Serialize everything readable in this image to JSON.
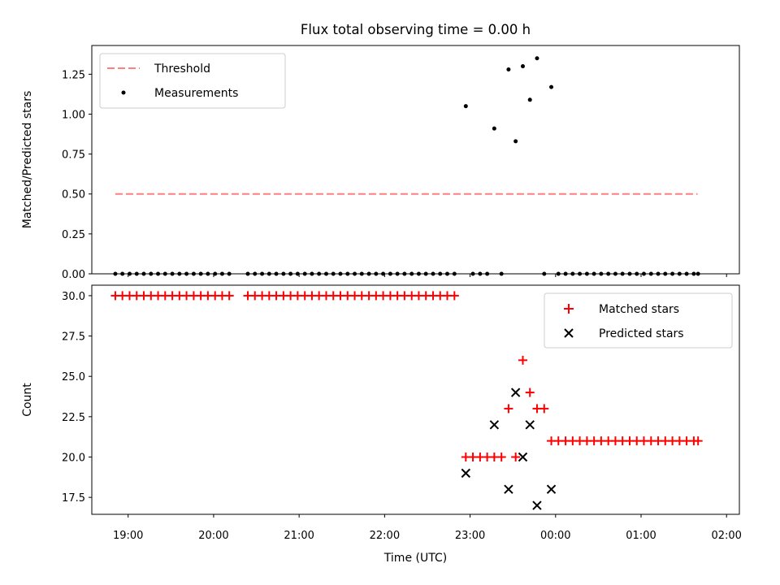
{
  "chart_data": [
    {
      "type": "scatter",
      "panel": "top",
      "title": "Flux total observing time = 0.00 h",
      "xlabel": "",
      "ylabel": "Matched/Predicted stars",
      "xlim": [
        18.575,
        26.15
      ],
      "ylim": [
        0.0,
        1.43
      ],
      "yticks": [
        0.0,
        0.25,
        0.5,
        0.75,
        1.0,
        1.25
      ],
      "ytick_labels": [
        "0.00",
        "0.25",
        "0.50",
        "0.75",
        "1.00",
        "1.25"
      ],
      "grid": false,
      "legend_position": "upper left",
      "threshold": {
        "name": "Threshold",
        "value": 0.5,
        "x_range": [
          18.85,
          25.66
        ],
        "color": "#ff7f7f"
      },
      "series": [
        {
          "name": "Measurements",
          "color": "#000000",
          "points": [
            [
              18.85,
              0
            ],
            [
              18.933,
              0
            ],
            [
              19.017,
              0
            ],
            [
              19.1,
              0
            ],
            [
              19.183,
              0
            ],
            [
              19.267,
              0
            ],
            [
              19.35,
              0
            ],
            [
              19.433,
              0
            ],
            [
              19.517,
              0
            ],
            [
              19.6,
              0
            ],
            [
              19.683,
              0
            ],
            [
              19.767,
              0
            ],
            [
              19.85,
              0
            ],
            [
              19.933,
              0
            ],
            [
              20.017,
              0
            ],
            [
              20.1,
              0
            ],
            [
              20.183,
              0
            ],
            [
              20.4,
              0
            ],
            [
              20.483,
              0
            ],
            [
              20.567,
              0
            ],
            [
              20.65,
              0
            ],
            [
              20.733,
              0
            ],
            [
              20.817,
              0
            ],
            [
              20.9,
              0
            ],
            [
              20.983,
              0
            ],
            [
              21.067,
              0
            ],
            [
              21.15,
              0
            ],
            [
              21.233,
              0
            ],
            [
              21.317,
              0
            ],
            [
              21.4,
              0
            ],
            [
              21.483,
              0
            ],
            [
              21.567,
              0
            ],
            [
              21.65,
              0
            ],
            [
              21.733,
              0
            ],
            [
              21.817,
              0
            ],
            [
              21.9,
              0
            ],
            [
              21.983,
              0
            ],
            [
              22.067,
              0
            ],
            [
              22.15,
              0
            ],
            [
              22.233,
              0
            ],
            [
              22.317,
              0
            ],
            [
              22.4,
              0
            ],
            [
              22.483,
              0
            ],
            [
              22.567,
              0
            ],
            [
              22.65,
              0
            ],
            [
              22.733,
              0
            ],
            [
              22.817,
              0
            ],
            [
              22.95,
              1.05
            ],
            [
              23.033,
              0
            ],
            [
              23.117,
              0
            ],
            [
              23.2,
              0
            ],
            [
              23.283,
              0.91
            ],
            [
              23.367,
              0
            ],
            [
              23.45,
              1.28
            ],
            [
              23.533,
              0.83
            ],
            [
              23.617,
              1.3
            ],
            [
              23.7,
              1.09
            ],
            [
              23.783,
              1.35
            ],
            [
              23.867,
              0
            ],
            [
              23.95,
              1.17
            ],
            [
              24.033,
              0
            ],
            [
              24.117,
              0
            ],
            [
              24.2,
              0
            ],
            [
              24.283,
              0
            ],
            [
              24.367,
              0
            ],
            [
              24.45,
              0
            ],
            [
              24.533,
              0
            ],
            [
              24.617,
              0
            ],
            [
              24.7,
              0
            ],
            [
              24.783,
              0
            ],
            [
              24.867,
              0
            ],
            [
              24.95,
              0
            ],
            [
              25.033,
              0
            ],
            [
              25.117,
              0
            ],
            [
              25.2,
              0
            ],
            [
              25.283,
              0
            ],
            [
              25.367,
              0
            ],
            [
              25.45,
              0
            ],
            [
              25.533,
              0
            ],
            [
              25.617,
              0
            ],
            [
              25.667,
              0
            ]
          ]
        }
      ]
    },
    {
      "type": "scatter",
      "panel": "bottom",
      "title": "",
      "xlabel": "Time (UTC)",
      "ylabel": "Count",
      "xlim": [
        18.575,
        26.15
      ],
      "ylim": [
        16.45,
        30.65
      ],
      "xticks": [
        19,
        20,
        21,
        22,
        23,
        24,
        25,
        26
      ],
      "xtick_labels": [
        "19:00",
        "20:00",
        "21:00",
        "22:00",
        "23:00",
        "00:00",
        "01:00",
        "02:00"
      ],
      "yticks": [
        17.5,
        20.0,
        22.5,
        25.0,
        27.5,
        30.0
      ],
      "ytick_labels": [
        "17.5",
        "20.0",
        "22.5",
        "25.0",
        "27.5",
        "30.0"
      ],
      "grid": false,
      "legend_position": "upper right",
      "series": [
        {
          "name": "Matched stars",
          "marker": "plus",
          "color": "#ff0000",
          "points": [
            [
              18.85,
              30
            ],
            [
              18.933,
              30
            ],
            [
              19.017,
              30
            ],
            [
              19.1,
              30
            ],
            [
              19.183,
              30
            ],
            [
              19.267,
              30
            ],
            [
              19.35,
              30
            ],
            [
              19.433,
              30
            ],
            [
              19.517,
              30
            ],
            [
              19.6,
              30
            ],
            [
              19.683,
              30
            ],
            [
              19.767,
              30
            ],
            [
              19.85,
              30
            ],
            [
              19.933,
              30
            ],
            [
              20.017,
              30
            ],
            [
              20.1,
              30
            ],
            [
              20.183,
              30
            ],
            [
              20.4,
              30
            ],
            [
              20.483,
              30
            ],
            [
              20.567,
              30
            ],
            [
              20.65,
              30
            ],
            [
              20.733,
              30
            ],
            [
              20.817,
              30
            ],
            [
              20.9,
              30
            ],
            [
              20.983,
              30
            ],
            [
              21.067,
              30
            ],
            [
              21.15,
              30
            ],
            [
              21.233,
              30
            ],
            [
              21.317,
              30
            ],
            [
              21.4,
              30
            ],
            [
              21.483,
              30
            ],
            [
              21.567,
              30
            ],
            [
              21.65,
              30
            ],
            [
              21.733,
              30
            ],
            [
              21.817,
              30
            ],
            [
              21.9,
              30
            ],
            [
              21.983,
              30
            ],
            [
              22.067,
              30
            ],
            [
              22.15,
              30
            ],
            [
              22.233,
              30
            ],
            [
              22.317,
              30
            ],
            [
              22.4,
              30
            ],
            [
              22.483,
              30
            ],
            [
              22.567,
              30
            ],
            [
              22.65,
              30
            ],
            [
              22.733,
              30
            ],
            [
              22.817,
              30
            ],
            [
              22.95,
              20
            ],
            [
              23.033,
              20
            ],
            [
              23.117,
              20
            ],
            [
              23.2,
              20
            ],
            [
              23.283,
              20
            ],
            [
              23.367,
              20
            ],
            [
              23.45,
              23
            ],
            [
              23.533,
              20
            ],
            [
              23.617,
              26
            ],
            [
              23.7,
              24
            ],
            [
              23.783,
              23
            ],
            [
              23.867,
              23
            ],
            [
              23.95,
              21
            ],
            [
              24.033,
              21
            ],
            [
              24.117,
              21
            ],
            [
              24.2,
              21
            ],
            [
              24.283,
              21
            ],
            [
              24.367,
              21
            ],
            [
              24.45,
              21
            ],
            [
              24.533,
              21
            ],
            [
              24.617,
              21
            ],
            [
              24.7,
              21
            ],
            [
              24.783,
              21
            ],
            [
              24.867,
              21
            ],
            [
              24.95,
              21
            ],
            [
              25.033,
              21
            ],
            [
              25.117,
              21
            ],
            [
              25.2,
              21
            ],
            [
              25.283,
              21
            ],
            [
              25.367,
              21
            ],
            [
              25.45,
              21
            ],
            [
              25.533,
              21
            ],
            [
              25.617,
              21
            ],
            [
              25.667,
              21
            ]
          ]
        },
        {
          "name": "Predicted stars",
          "marker": "x",
          "color": "#000000",
          "points": [
            [
              22.95,
              19
            ],
            [
              23.283,
              22
            ],
            [
              23.45,
              18
            ],
            [
              23.533,
              24
            ],
            [
              23.617,
              20
            ],
            [
              23.7,
              22
            ],
            [
              23.783,
              17
            ],
            [
              23.95,
              18
            ]
          ]
        }
      ]
    }
  ]
}
